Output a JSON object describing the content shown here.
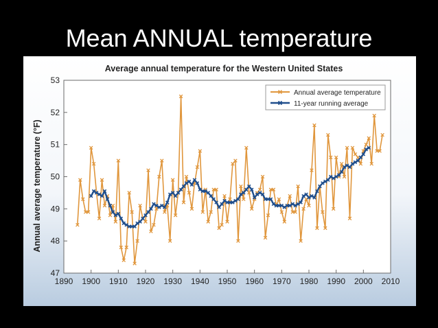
{
  "slide": {
    "title": "Mean ANNUAL temperature"
  },
  "colors": {
    "background": "#000000",
    "figure_top": "#ffffff",
    "figure_bottom": "#b9cce0",
    "annual_line": "#e0963c",
    "running_line": "#1f4e8c"
  },
  "chart_data": {
    "type": "line",
    "title": "Average annual temperature for the Western United States",
    "xlabel": "",
    "ylabel": "Annual average temperature (°F)",
    "xlim": [
      1890,
      2010
    ],
    "ylim": [
      47,
      53
    ],
    "x_ticks": [
      1890,
      1900,
      1910,
      1920,
      1930,
      1940,
      1950,
      1960,
      1970,
      1980,
      1990,
      2000,
      2010
    ],
    "y_ticks": [
      47,
      48,
      49,
      50,
      51,
      52,
      53
    ],
    "grid": false,
    "legend_position": "top-right",
    "series": [
      {
        "name": "Annual average temperature",
        "color": "#e0963c",
        "marker": "x",
        "x": [
          1895,
          1896,
          1897,
          1898,
          1899,
          1900,
          1901,
          1902,
          1903,
          1904,
          1905,
          1906,
          1907,
          1908,
          1909,
          1910,
          1911,
          1912,
          1913,
          1914,
          1915,
          1916,
          1917,
          1918,
          1919,
          1920,
          1921,
          1922,
          1923,
          1924,
          1925,
          1926,
          1927,
          1928,
          1929,
          1930,
          1931,
          1932,
          1933,
          1934,
          1935,
          1936,
          1937,
          1938,
          1939,
          1940,
          1941,
          1942,
          1943,
          1944,
          1945,
          1946,
          1947,
          1948,
          1949,
          1950,
          1951,
          1952,
          1953,
          1954,
          1955,
          1956,
          1957,
          1958,
          1959,
          1960,
          1961,
          1962,
          1963,
          1964,
          1965,
          1966,
          1967,
          1968,
          1969,
          1970,
          1971,
          1972,
          1973,
          1974,
          1975,
          1976,
          1977,
          1978,
          1979,
          1980,
          1981,
          1982,
          1983,
          1984,
          1985,
          1986,
          1987,
          1988,
          1989,
          1990,
          1991,
          1992,
          1993,
          1994,
          1995,
          1996,
          1997,
          1998,
          1999,
          2000,
          2001,
          2002,
          2003,
          2004,
          2005,
          2006,
          2007
        ],
        "values": [
          48.5,
          49.9,
          49.3,
          48.9,
          48.9,
          50.9,
          50.4,
          49.5,
          48.7,
          49.9,
          49.1,
          49.4,
          48.8,
          49.1,
          48.6,
          50.5,
          47.8,
          47.4,
          47.8,
          49.5,
          48.9,
          47.3,
          48.0,
          49.1,
          48.7,
          48.6,
          50.2,
          48.3,
          48.5,
          49.0,
          50.0,
          50.5,
          48.9,
          49.1,
          48.0,
          49.9,
          48.8,
          49.5,
          52.5,
          49.2,
          50.0,
          49.5,
          49.0,
          49.8,
          50.3,
          50.8,
          48.9,
          49.6,
          48.6,
          48.9,
          49.6,
          49.6,
          48.4,
          48.5,
          49.4,
          48.6,
          49.3,
          50.4,
          50.5,
          48.0,
          49.7,
          49.3,
          50.9,
          49.5,
          49.0,
          49.3,
          49.5,
          49.6,
          50.0,
          48.1,
          48.8,
          49.6,
          49.6,
          49.1,
          49.3,
          48.9,
          48.6,
          49.1,
          49.4,
          48.9,
          48.9,
          49.7,
          48.0,
          49.0,
          49.3,
          49.1,
          50.2,
          51.6,
          48.4,
          49.7,
          48.9,
          48.4,
          51.3,
          50.6,
          49.0,
          50.6,
          50.0,
          50.4,
          50.0,
          50.9,
          48.7,
          50.9,
          50.7,
          50.6,
          50.4,
          50.8,
          51.0,
          51.2,
          50.4,
          51.9,
          50.8,
          50.8,
          51.3
        ]
      },
      {
        "name": "11-year running average",
        "color": "#1f4e8c",
        "marker": "x",
        "x": [
          1900,
          1901,
          1902,
          1903,
          1904,
          1905,
          1906,
          1907,
          1908,
          1909,
          1910,
          1911,
          1912,
          1913,
          1914,
          1915,
          1916,
          1917,
          1918,
          1919,
          1920,
          1921,
          1922,
          1923,
          1924,
          1925,
          1926,
          1927,
          1928,
          1929,
          1930,
          1931,
          1932,
          1933,
          1934,
          1935,
          1936,
          1937,
          1938,
          1939,
          1940,
          1941,
          1942,
          1943,
          1944,
          1945,
          1946,
          1947,
          1948,
          1949,
          1950,
          1951,
          1952,
          1953,
          1954,
          1955,
          1956,
          1957,
          1958,
          1959,
          1960,
          1961,
          1962,
          1963,
          1964,
          1965,
          1966,
          1967,
          1968,
          1969,
          1970,
          1971,
          1972,
          1973,
          1974,
          1975,
          1976,
          1977,
          1978,
          1979,
          1980,
          1981,
          1982,
          1983,
          1984,
          1985,
          1986,
          1987,
          1988,
          1989,
          1990,
          1991,
          1992,
          1993,
          1994,
          1995,
          1996,
          1997,
          1998,
          1999,
          2000,
          2001,
          2002
        ],
        "values": [
          49.4,
          49.55,
          49.5,
          49.45,
          49.4,
          49.55,
          49.3,
          49.1,
          48.9,
          48.8,
          48.85,
          48.7,
          48.55,
          48.5,
          48.45,
          48.45,
          48.45,
          48.55,
          48.6,
          48.7,
          48.8,
          48.9,
          49.0,
          49.15,
          49.1,
          49.05,
          49.1,
          49.05,
          49.2,
          49.45,
          49.5,
          49.4,
          49.5,
          49.6,
          49.7,
          49.8,
          49.85,
          49.75,
          49.9,
          49.8,
          49.6,
          49.55,
          49.55,
          49.5,
          49.4,
          49.3,
          49.2,
          49.05,
          49.15,
          49.25,
          49.2,
          49.2,
          49.2,
          49.25,
          49.3,
          49.45,
          49.5,
          49.6,
          49.7,
          49.6,
          49.35,
          49.45,
          49.5,
          49.45,
          49.3,
          49.3,
          49.3,
          49.15,
          49.1,
          49.1,
          49.1,
          49.05,
          49.1,
          49.1,
          49.15,
          49.1,
          49.15,
          49.2,
          49.4,
          49.45,
          49.35,
          49.4,
          49.35,
          49.55,
          49.7,
          49.8,
          49.85,
          49.9,
          50.0,
          49.95,
          50.0,
          50.05,
          50.15,
          50.3,
          50.35,
          50.3,
          50.4,
          50.45,
          50.5,
          50.6,
          50.7,
          50.85,
          50.9
        ]
      }
    ]
  }
}
